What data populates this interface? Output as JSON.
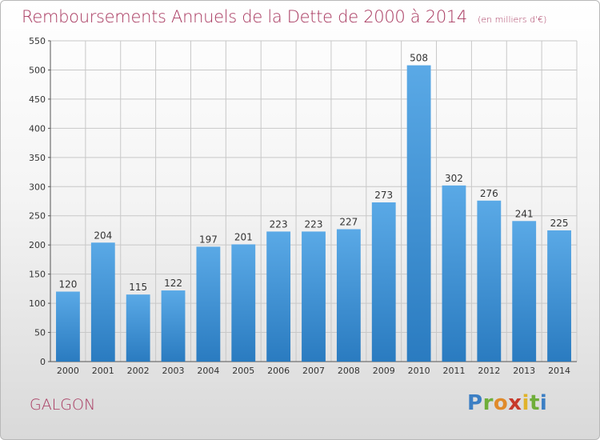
{
  "header": {
    "title": "Remboursements Annuels de la Dette de 2000 à 2014",
    "unit": "(en milliers d'€)"
  },
  "footer": {
    "commune": "GALGON",
    "brand": "Proxiti"
  },
  "colors": {
    "title": "#a8385f",
    "bar_top": "#5aa9e6",
    "bar_bottom": "#2a7bc0",
    "grid": "#c8c8c8"
  },
  "chart_data": {
    "type": "bar",
    "title": "Remboursements Annuels de la Dette de 2000 à 2014",
    "xlabel": "",
    "ylabel": "",
    "categories": [
      "2000",
      "2001",
      "2002",
      "2003",
      "2004",
      "2005",
      "2006",
      "2007",
      "2008",
      "2009",
      "2010",
      "2011",
      "2012",
      "2013",
      "2014"
    ],
    "values": [
      120,
      204,
      115,
      122,
      197,
      201,
      223,
      223,
      227,
      273,
      508,
      302,
      276,
      241,
      225
    ],
    "ylim": [
      0,
      550
    ],
    "yticks": [
      0,
      50,
      100,
      150,
      200,
      250,
      300,
      350,
      400,
      450,
      500,
      550
    ],
    "grid": true,
    "legend": "none"
  }
}
